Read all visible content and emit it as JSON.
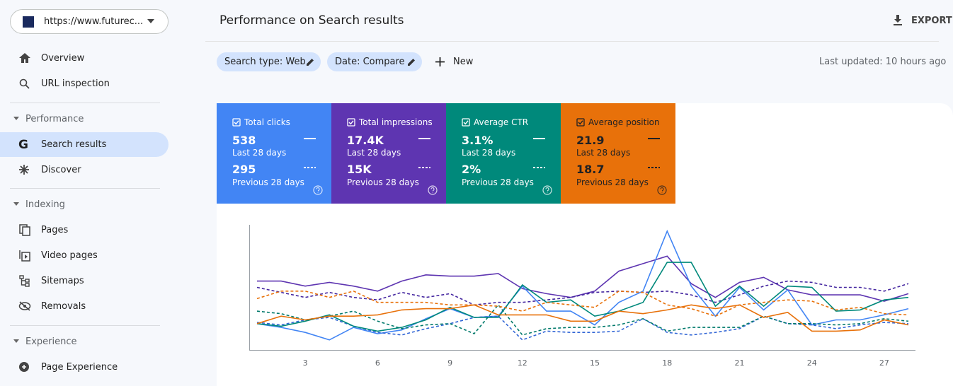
{
  "sidebar": {
    "property": "https://www.futurec...",
    "top_items": [
      {
        "label": "Overview"
      },
      {
        "label": "URL inspection"
      }
    ],
    "sections": [
      {
        "title": "Performance",
        "items": [
          {
            "label": "Search results"
          },
          {
            "label": "Discover"
          }
        ]
      },
      {
        "title": "Indexing",
        "items": [
          {
            "label": "Pages"
          },
          {
            "label": "Video pages"
          },
          {
            "label": "Sitemaps"
          },
          {
            "label": "Removals"
          }
        ]
      },
      {
        "title": "Experience",
        "items": [
          {
            "label": "Page Experience"
          }
        ]
      }
    ]
  },
  "header": {
    "title": "Performance on Search results",
    "export": "EXPORT"
  },
  "filters": {
    "chips": [
      "Search type: Web",
      "Date: Compare"
    ],
    "new": "New",
    "last_updated": "Last updated: 10 hours ago"
  },
  "metric_cards": [
    {
      "label": "Total clicks",
      "current": "538",
      "current_period": "Last 28 days",
      "previous": "295",
      "previous_period": "Previous 28 days",
      "color": "#4285f4"
    },
    {
      "label": "Total impressions",
      "current": "17.4K",
      "current_period": "Last 28 days",
      "previous": "15K",
      "previous_period": "Previous 28 days",
      "color": "#5e35b1"
    },
    {
      "label": "Average CTR",
      "current": "3.1%",
      "current_period": "Last 28 days",
      "previous": "2%",
      "previous_period": "Previous 28 days",
      "color": "#00897b"
    },
    {
      "label": "Average position",
      "current": "21.9",
      "current_period": "Last 28 days",
      "previous": "18.7",
      "previous_period": "Previous 28 days",
      "color": "#e8710a"
    }
  ],
  "chart_data": {
    "type": "line",
    "categories": [
      null,
      null,
      "3",
      null,
      null,
      "6",
      null,
      null,
      "9",
      null,
      null,
      "12",
      null,
      null,
      "15",
      null,
      null,
      "18",
      null,
      null,
      "21",
      null,
      null,
      "24",
      null,
      null,
      "27",
      null
    ],
    "ylim": [
      0,
      100
    ],
    "series": [
      {
        "color": "#5e35b1",
        "dashed": false,
        "values": [
          55,
          55,
          51,
          54,
          51,
          47,
          55,
          60,
          59,
          59,
          61,
          49,
          45,
          42,
          47,
          63,
          69,
          75,
          53,
          42,
          54,
          58,
          48,
          44,
          44,
          44,
          39,
          45
        ]
      },
      {
        "color": "#4527a0",
        "dashed": true,
        "values": [
          50,
          46,
          42,
          46,
          42,
          40,
          46,
          42,
          45,
          36,
          38,
          38,
          40,
          42,
          46,
          47,
          46,
          47,
          44,
          38,
          44,
          51,
          55,
          54,
          50,
          50,
          47,
          53
        ]
      },
      {
        "color": "#4285f4",
        "dashed": false,
        "values": [
          21,
          18,
          14,
          8,
          18,
          13,
          16,
          25,
          33,
          26,
          27,
          51,
          31,
          31,
          20,
          38,
          47,
          95,
          51,
          27,
          50,
          32,
          48,
          20,
          24,
          24,
          28,
          33
        ]
      },
      {
        "color": "#3367d6",
        "dashed": true,
        "values": [
          22,
          20,
          24,
          26,
          19,
          14,
          12,
          17,
          21,
          26,
          27,
          8,
          15,
          14,
          14,
          15,
          25,
          14,
          12,
          14,
          17,
          27,
          21,
          20,
          17,
          20,
          22,
          21
        ]
      },
      {
        "color": "#00897b",
        "dashed": false,
        "values": [
          21,
          19,
          23,
          28,
          19,
          15,
          18,
          24,
          34,
          26,
          26,
          52,
          38,
          40,
          27,
          31,
          38,
          70,
          70,
          35,
          51,
          35,
          51,
          50,
          31,
          32,
          40,
          42
        ]
      },
      {
        "color": "#00796b",
        "dashed": true,
        "values": [
          31,
          29,
          24,
          27,
          31,
          23,
          17,
          20,
          21,
          13,
          36,
          12,
          17,
          18,
          18,
          20,
          25,
          15,
          18,
          18,
          18,
          27,
          21,
          21,
          20,
          21,
          25,
          23
        ]
      },
      {
        "color": "#e8710a",
        "dashed": false,
        "values": [
          21,
          27,
          24,
          27,
          27,
          28,
          32,
          33,
          33,
          36,
          28,
          28,
          28,
          23,
          23,
          31,
          29,
          32,
          36,
          33,
          36,
          26,
          30,
          15,
          15,
          16,
          24,
          20
        ]
      },
      {
        "color": "#e8710a",
        "dashed": true,
        "values": [
          41,
          47,
          47,
          42,
          47,
          38,
          38,
          38,
          36,
          36,
          35,
          31,
          38,
          36,
          34,
          47,
          46,
          36,
          33,
          27,
          36,
          38,
          40,
          39,
          32,
          34,
          29,
          28
        ]
      }
    ]
  }
}
